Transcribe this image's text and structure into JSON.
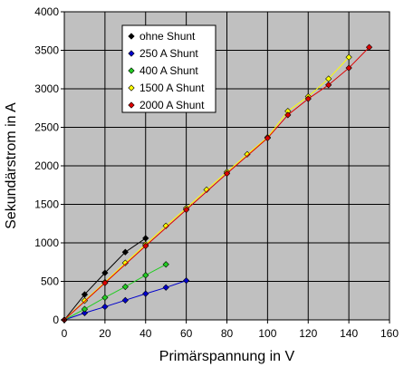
{
  "chart_data": {
    "type": "line",
    "title": "",
    "xlabel": "Primärspannung in V",
    "ylabel": "Sekundärstrom in A",
    "xlim": [
      0,
      160
    ],
    "ylim": [
      0,
      4000
    ],
    "xticks": [
      "0",
      "20",
      "40",
      "60",
      "80",
      "100",
      "120",
      "140",
      "160"
    ],
    "yticks": [
      "0",
      "500",
      "1000",
      "1500",
      "2000",
      "2500",
      "3000",
      "3500",
      "4000"
    ],
    "grid": true,
    "plot_background": "#c0c0c0",
    "legend_position": "top-left",
    "series": [
      {
        "name": "ohne Shunt",
        "color": "#000000",
        "marker": "diamond",
        "x": [
          0,
          10,
          20,
          30,
          40
        ],
        "y": [
          0,
          330,
          610,
          880,
          1060
        ]
      },
      {
        "name": "250 A Shunt",
        "color": "#0000cc",
        "marker": "diamond",
        "x": [
          0,
          10,
          20,
          30,
          40,
          50,
          60
        ],
        "y": [
          0,
          90,
          170,
          255,
          340,
          420,
          510
        ]
      },
      {
        "name": "400 A Shunt",
        "color": "#22cc22",
        "marker": "diamond",
        "x": [
          0,
          10,
          20,
          30,
          40,
          50
        ],
        "y": [
          0,
          140,
          290,
          430,
          580,
          720
        ]
      },
      {
        "name": "1500 A Shunt",
        "color": "#ffff00",
        "marker": "diamond",
        "x": [
          0,
          10,
          20,
          30,
          40,
          50,
          60,
          70,
          80,
          90,
          100,
          110,
          120,
          130,
          140
        ],
        "y": [
          0,
          250,
          490,
          740,
          980,
          1220,
          1450,
          1690,
          1920,
          2150,
          2370,
          2710,
          2900,
          3130,
          3410
        ]
      },
      {
        "name": "2000 A Shunt",
        "color": "#dd0000",
        "marker": "diamond",
        "x": [
          0,
          20,
          40,
          60,
          80,
          100,
          110,
          120,
          130,
          140,
          150
        ],
        "y": [
          0,
          480,
          960,
          1430,
          1900,
          2360,
          2660,
          2870,
          3050,
          3270,
          3540
        ]
      }
    ]
  }
}
